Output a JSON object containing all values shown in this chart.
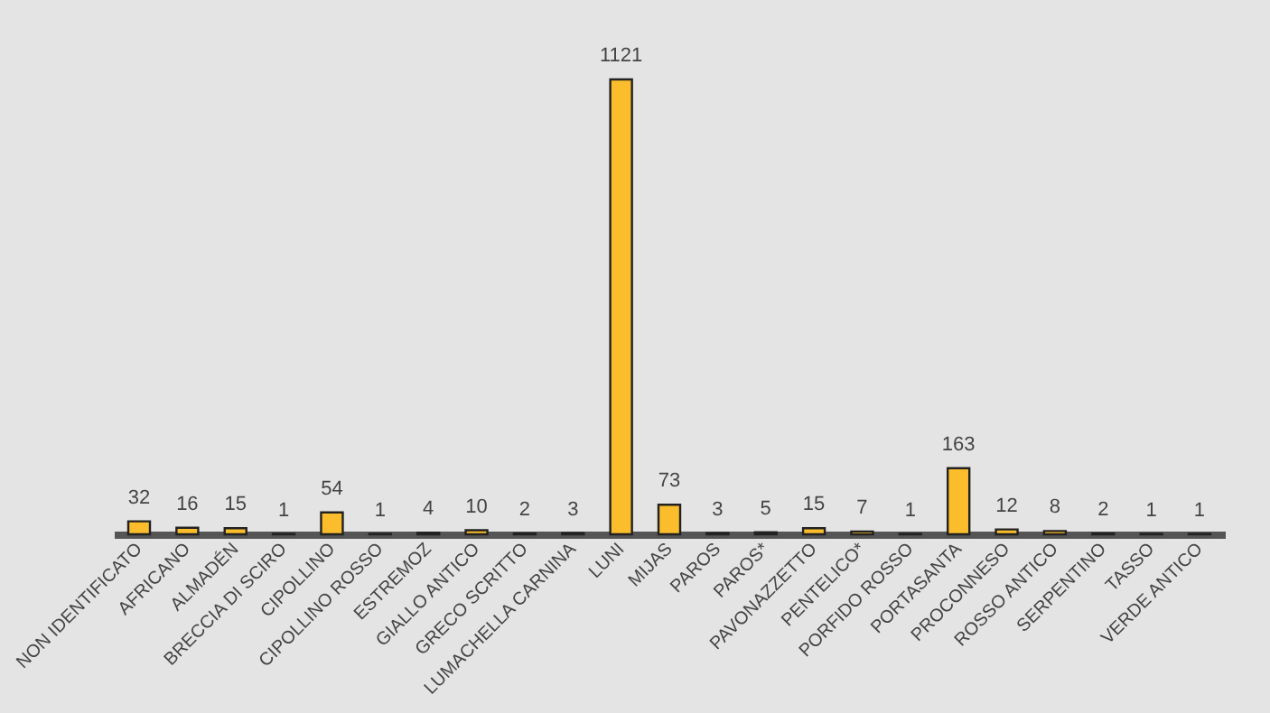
{
  "chart_data": {
    "type": "bar",
    "categories": [
      "NON IDENTIFICATO",
      "AFRICANO",
      "ALMADÉN",
      "BRECCIA DI SCIRO",
      "CIPOLLINO",
      "CIPOLLINO ROSSO",
      "ESTREMOZ",
      "GIALLO ANTICO",
      "GRECO SCRITTO",
      "LUMACHELLA CARNINA",
      "LUNI",
      "MIJAS",
      "PAROS",
      "PAROS*",
      "PAVONAZZETTO",
      "PENTELICO*",
      "PORFIDO ROSSO",
      "PORTASANTA",
      "PROCONNESO",
      "ROSSO ANTICO",
      "SERPENTINO",
      "TASSO",
      "VERDE ANTICO"
    ],
    "values": [
      32,
      16,
      15,
      1,
      54,
      1,
      4,
      10,
      2,
      3,
      1121,
      73,
      3,
      5,
      15,
      7,
      1,
      163,
      12,
      8,
      2,
      1,
      1
    ],
    "color": "#fbbd2b",
    "data_labels": true,
    "tick_labels": "x"
  }
}
